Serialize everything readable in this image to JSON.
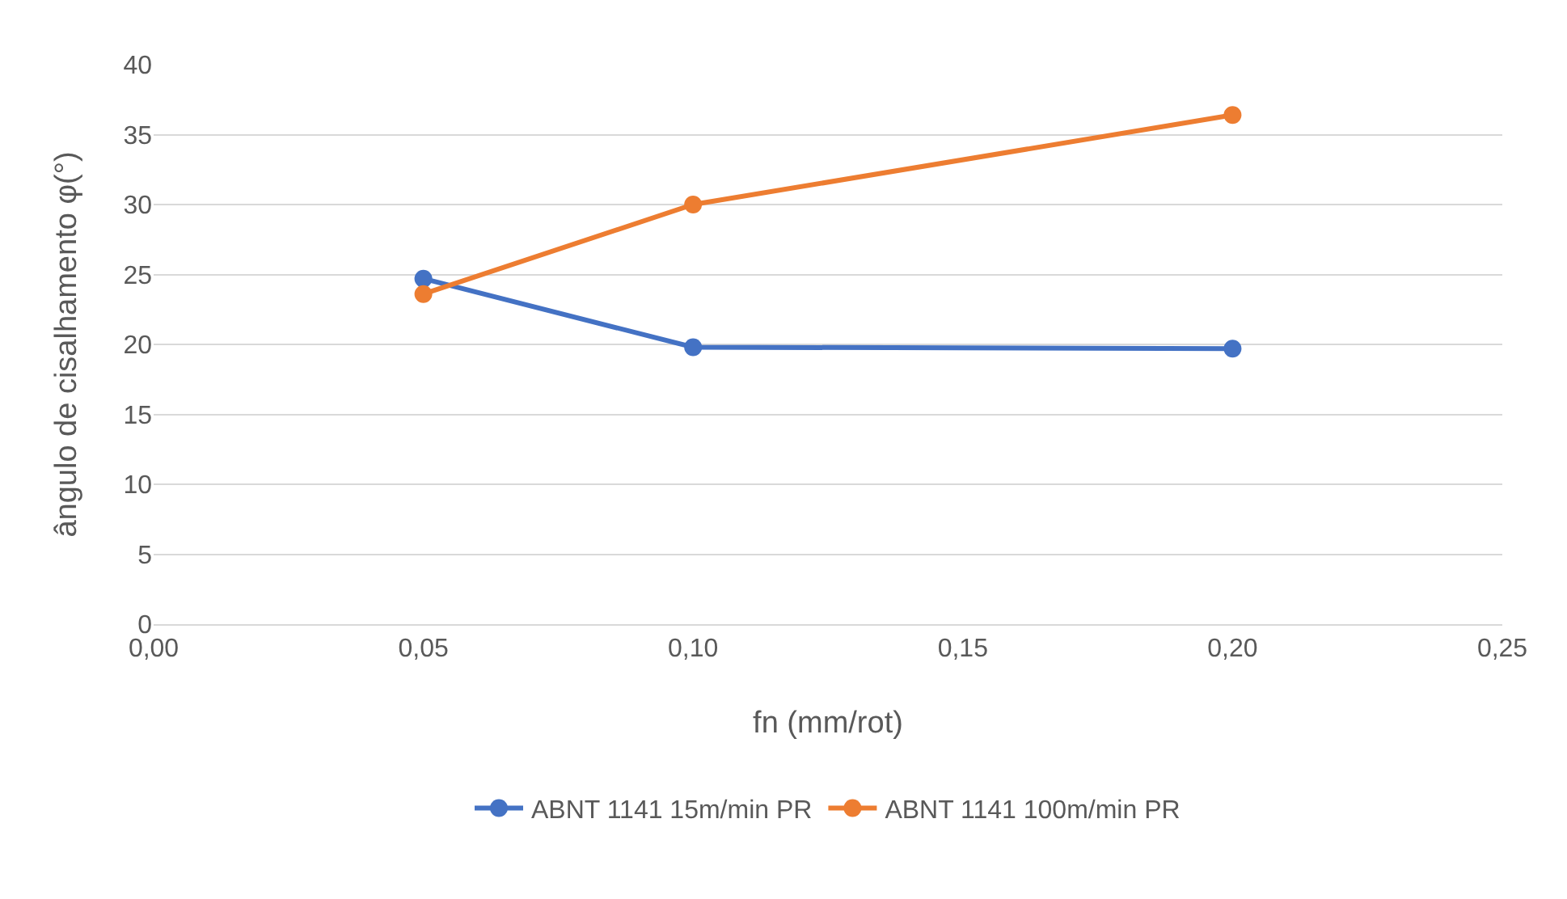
{
  "chart_data": {
    "type": "line",
    "xlabel": "fn (mm/rot)",
    "ylabel": "ângulo de cisalhamento φ(°)",
    "x": [
      0.05,
      0.1,
      0.2
    ],
    "series": [
      {
        "name": "ABNT 1141 15m/min PR",
        "color": "#4472c4",
        "values": [
          24.7,
          19.8,
          19.7
        ]
      },
      {
        "name": "ABNT 1141 100m/min PR",
        "color": "#ed7d31",
        "values": [
          23.6,
          30.0,
          36.4
        ]
      }
    ],
    "xlim": [
      0,
      0.25
    ],
    "xticks": [
      {
        "value": 0,
        "label": "0,00"
      },
      {
        "value": 0.05,
        "label": "0,05"
      },
      {
        "value": 0.1,
        "label": "0,10"
      },
      {
        "value": 0.15,
        "label": "0,15"
      },
      {
        "value": 0.2,
        "label": "0,20"
      },
      {
        "value": 0.25,
        "label": "0,25"
      }
    ],
    "ylim": [
      0,
      40
    ],
    "yticks": [
      0,
      5,
      10,
      15,
      20,
      25,
      30,
      35,
      40
    ],
    "grid": "y",
    "legend": "bottom",
    "marker": "circle",
    "line_style": "solid"
  }
}
